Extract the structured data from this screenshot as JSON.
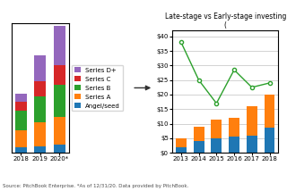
{
  "chart_data": [
    {
      "type": "bar",
      "stacked": true,
      "categories": [
        "2018",
        "2019",
        "2020*"
      ],
      "series": [
        {
          "name": "Angel/seed",
          "values": [
            1.2,
            1.5,
            1.8
          ]
        },
        {
          "name": "Series A",
          "values": [
            4.0,
            5.5,
            6.5
          ]
        },
        {
          "name": "Series B",
          "values": [
            4.5,
            6.0,
            7.5
          ]
        },
        {
          "name": "Series C",
          "values": [
            2.0,
            3.5,
            4.5
          ]
        },
        {
          "name": "Series D+",
          "values": [
            2.0,
            6.0,
            9.0
          ]
        }
      ],
      "ylim": [
        0,
        30
      ],
      "tick_labels": "x",
      "legend": "right",
      "annotations": [
        "Source: PitchBook Enterprise. *As of 12/31/20. Data provided by PitchBook."
      ]
    },
    {
      "type": "bar",
      "stacked": true,
      "title": "Late-stage vs Early-stage investing (",
      "categories": [
        "2013",
        "2014",
        "2015",
        "2016",
        "2017",
        "2018"
      ],
      "series": [
        {
          "values": [
            2.0,
            4.0,
            5.0,
            5.5,
            6.0,
            8.5
          ]
        },
        {
          "values": [
            3.0,
            5.0,
            6.5,
            6.5,
            10.0,
            11.5
          ]
        },
        {
          "type": "line",
          "marker": "circle",
          "values": [
            38.0,
            25.0,
            17.0,
            28.5,
            22.5,
            24.0
          ]
        }
      ],
      "ylim": [
        0,
        42
      ],
      "yticks": [
        {
          "value": 0,
          "label": "$0"
        },
        {
          "value": 5,
          "label": "$5"
        },
        {
          "value": 10,
          "label": "$10"
        },
        {
          "value": 15,
          "label": "$15"
        },
        {
          "value": 20,
          "label": "$20"
        },
        {
          "value": 25,
          "label": "$25"
        },
        {
          "value": 30,
          "label": "$30"
        },
        {
          "value": 35,
          "label": "$35"
        },
        {
          "value": 40,
          "label": "$40"
        }
      ],
      "grid": true
    }
  ]
}
